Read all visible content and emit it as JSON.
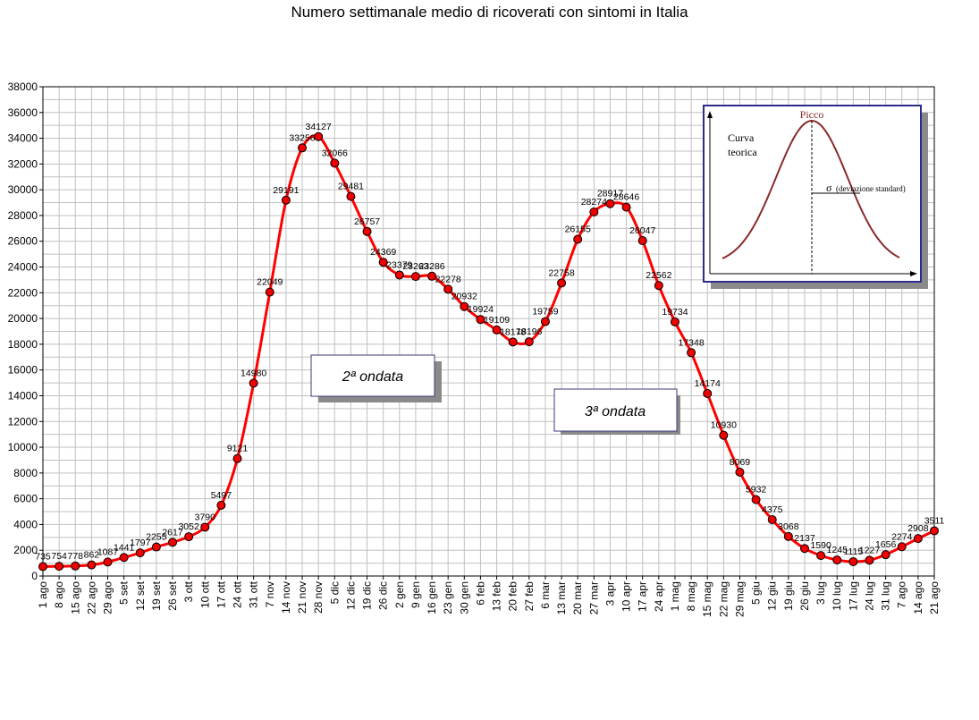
{
  "chart_data": {
    "type": "line",
    "title": "Numero settimanale medio di ricoverati con sintomi in Italia",
    "xlabel": "",
    "ylabel": "",
    "ylim": [
      0,
      38000
    ],
    "ytick_step": 2000,
    "grid": true,
    "categories": [
      "1 ago",
      "8 ago",
      "15 ago",
      "22 ago",
      "29 ago",
      "5 set",
      "12 set",
      "19 set",
      "26 set",
      "3 ott",
      "10 ott",
      "17 ott",
      "24 ott",
      "31 ott",
      "7 nov",
      "14 nov",
      "21 nov",
      "28 nov",
      "5 dic",
      "12 dic",
      "19 dic",
      "26 dic",
      "2 gen",
      "9 gen",
      "16 gen",
      "23 gen",
      "30 gen",
      "6 feb",
      "13 feb",
      "20 feb",
      "27 feb",
      "6 mar",
      "13 mar",
      "20 mar",
      "27 mar",
      "3 apr",
      "10 apr",
      "17 apr",
      "24 apr",
      "1 mag",
      "8 mag",
      "15 mag",
      "22 mag",
      "29 mag",
      "5 giu",
      "12 giu",
      "19 giu",
      "26 giu",
      "3 lug",
      "10 lug",
      "17 lug",
      "24 lug",
      "31 lug",
      "7 ago",
      "14 ago",
      "21 ago"
    ],
    "series": [
      {
        "values": [
          735,
          754,
          778,
          862,
          1087,
          1441,
          1797,
          2255,
          2617,
          3052,
          3790,
          5497,
          9121,
          14980,
          22049,
          29191,
          33256,
          34127,
          32066,
          29481,
          26757,
          24369,
          23379,
          23263,
          23286,
          22278,
          20932,
          19924,
          19109,
          18178,
          18196,
          19759,
          22758,
          26155,
          28274,
          28917,
          28646,
          26047,
          22562,
          19734,
          17348,
          14174,
          10930,
          8069,
          5932,
          4375,
          3068,
          2137,
          1590,
          1245,
          1115,
          1227,
          1656,
          2274,
          2908,
          3511
        ],
        "labels": [
          "735",
          "754",
          "778",
          "862",
          "1087",
          "1441",
          "1797",
          "2255",
          "2617",
          "3052",
          "3790",
          "5497",
          "9121",
          "14980",
          "22049",
          "29191",
          "33256",
          "34127",
          "32066",
          "29481",
          "26757",
          "24369",
          "23379",
          "23263",
          "23286",
          "22278",
          "20932",
          "19924",
          "19109",
          "18178",
          "18196",
          "19759",
          "22758",
          "26155",
          "28274",
          "28917",
          "28646",
          "26047",
          "22562",
          "19734",
          "17348",
          "14174",
          "10930",
          "8069",
          "5932",
          "4375",
          "3068",
          "2137",
          "1590",
          "1245",
          "1115",
          "1227",
          "1656",
          "2274",
          "2908",
          "3511"
        ]
      }
    ],
    "annotations": [
      {
        "text": "2ª ondata"
      },
      {
        "text": "3ª ondata"
      }
    ],
    "colors": {
      "line": "#ff0000",
      "marker": "#ee0000",
      "grid": "#c0c0c0",
      "inset_border": "#2b2b8a",
      "inset_curve": "#8b2a2a"
    }
  },
  "inset": {
    "peak_label": "Picco",
    "curve_label_line1": "Curva",
    "curve_label_line2": "teorica",
    "sigma_symbol": "σ",
    "sigma_label": "(deviazione standard)"
  }
}
